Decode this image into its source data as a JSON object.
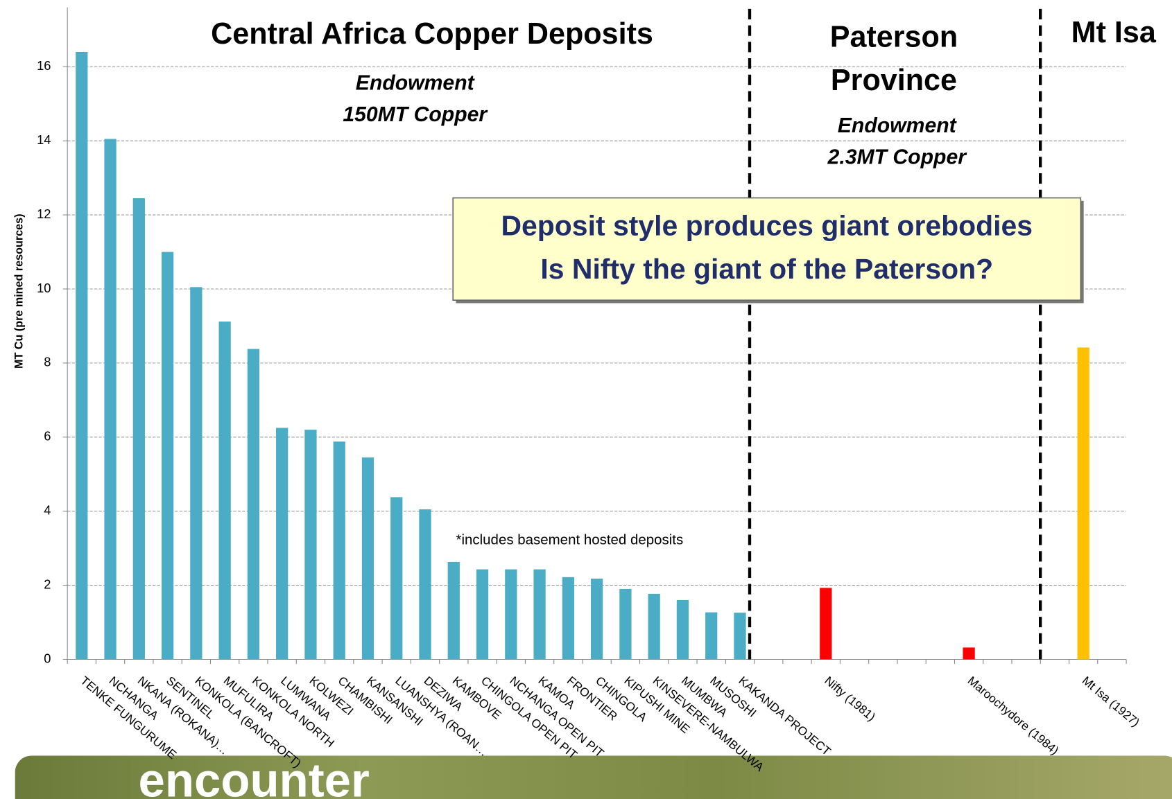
{
  "chart_data": {
    "type": "bar",
    "y_label": "MT Cu (pre mined resources)",
    "categories": [
      "TENKE FUNGURUME",
      "NCHANGA",
      "NKANA (ROKANA)…",
      "SENTINEL",
      "KONKOLA (BANCROFT)",
      "MUFULIRA",
      "KONKOLA NORTH",
      "LUMWANA",
      "KOLWEZI",
      "CHAMBISHI",
      "KANSANSHI",
      "LUANSHYA (ROAN…",
      "DEZIWA",
      "KAMBOVE",
      "CHINGOLA OPEN PIT",
      "NCHANGA OPEN PIT",
      "KAMOA",
      "FRONTIER",
      "CHINGOLA",
      "KIPUSHI MINE",
      "KINSEVERE-NAMBULWA",
      "MUMBWA",
      "MUSOSHI",
      "KAKANDA PROJECT",
      null,
      null,
      "Nifty (1981)",
      null,
      null,
      null,
      null,
      "Maroochydore (1984)",
      null,
      null,
      null,
      "Mt Isa (1927)",
      null
    ],
    "values": [
      16.4,
      14.05,
      12.45,
      11.0,
      10.05,
      9.12,
      8.38,
      6.25,
      6.2,
      5.88,
      5.45,
      4.38,
      4.05,
      2.63,
      2.43,
      2.43,
      2.43,
      2.22,
      2.18,
      1.9,
      1.77,
      1.6,
      1.27,
      1.26,
      null,
      null,
      1.93,
      null,
      null,
      null,
      null,
      0.32,
      null,
      null,
      null,
      8.42,
      null
    ],
    "colors": [
      "#4bacc6",
      "#4bacc6",
      "#4bacc6",
      "#4bacc6",
      "#4bacc6",
      "#4bacc6",
      "#4bacc6",
      "#4bacc6",
      "#4bacc6",
      "#4bacc6",
      "#4bacc6",
      "#4bacc6",
      "#4bacc6",
      "#4bacc6",
      "#4bacc6",
      "#4bacc6",
      "#4bacc6",
      "#4bacc6",
      "#4bacc6",
      "#4bacc6",
      "#4bacc6",
      "#4bacc6",
      "#4bacc6",
      "#4bacc6",
      null,
      null,
      "#ff0000",
      null,
      null,
      null,
      null,
      "#ff0000",
      null,
      null,
      null,
      "#ffc000",
      null
    ],
    "ylim": [
      0,
      17.6
    ],
    "yticks": [
      0,
      2,
      4,
      6,
      8,
      10,
      12,
      14,
      16
    ],
    "grid": true,
    "regions": [
      {
        "title": "Central Africa Copper Deposits",
        "note": [
          "Endowment",
          "150MT Copper"
        ]
      },
      {
        "title": [
          "Paterson",
          "Province"
        ],
        "note": [
          "Endowment",
          "2.3MT Copper"
        ]
      },
      {
        "title": "Mt Isa"
      }
    ],
    "callout": [
      "Deposit style produces giant orebodies",
      "Is Nifty the giant of the Paterson?"
    ],
    "footnote": "*includes basement hosted deposits",
    "logo": "encounter"
  }
}
